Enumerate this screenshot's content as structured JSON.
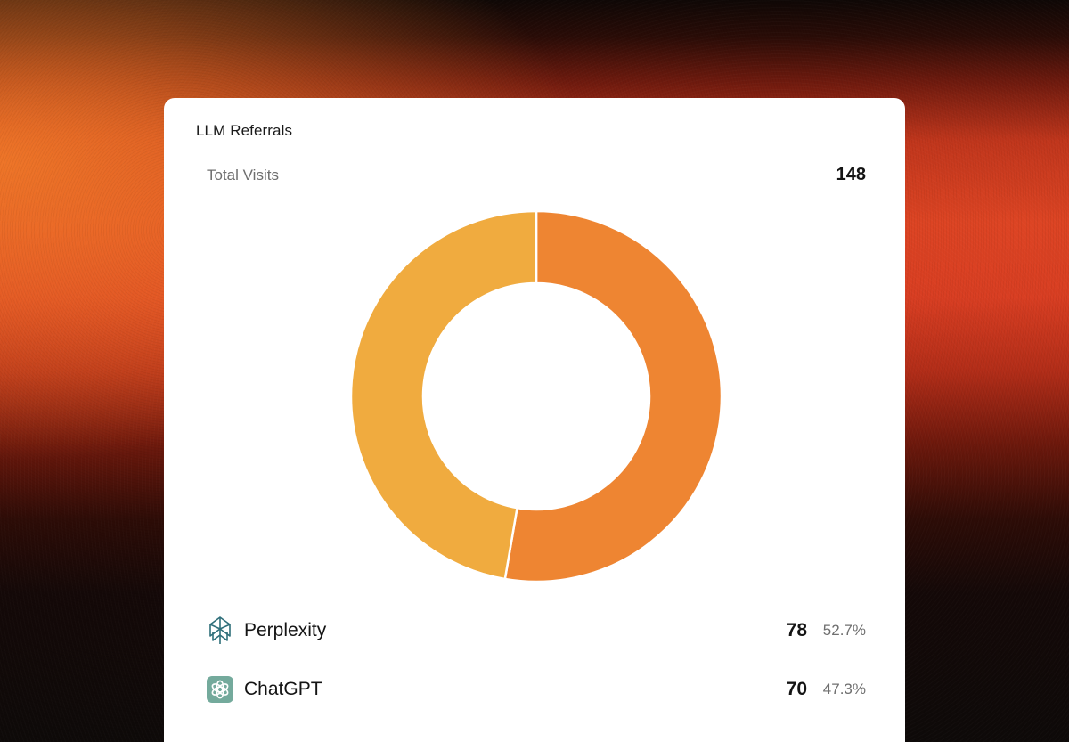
{
  "card": {
    "title": "LLM Referrals",
    "total_label": "Total Visits",
    "total_value": "148"
  },
  "legend": [
    {
      "name": "Perplexity",
      "count": "78",
      "percent": "52.7%",
      "icon": "perplexity-icon",
      "color": "#EE8532"
    },
    {
      "name": "ChatGPT",
      "count": "70",
      "percent": "47.3%",
      "icon": "chatgpt-icon",
      "color": "#F0AB3F"
    }
  ],
  "chart_data": {
    "type": "pie",
    "categories": [
      "Perplexity",
      "ChatGPT"
    ],
    "values": [
      78,
      70
    ],
    "percentages": [
      52.7,
      47.3
    ],
    "colors": [
      "#EE8532",
      "#F0AB3F"
    ],
    "total": 148,
    "title": "LLM Referrals"
  }
}
